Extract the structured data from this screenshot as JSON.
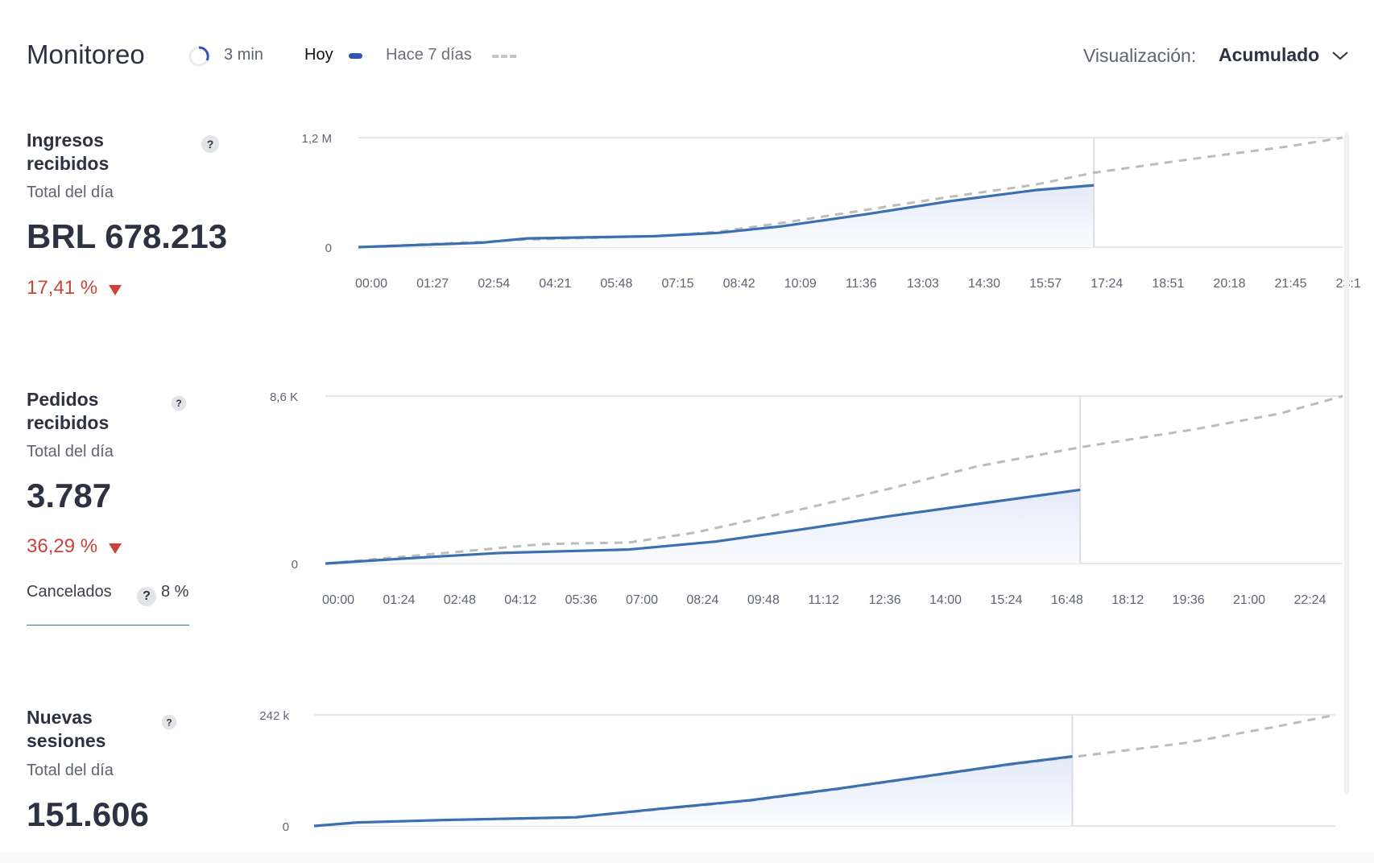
{
  "header": {
    "title": "Monitoreo",
    "refresh_interval": "3 min",
    "legend_today": "Hoy",
    "legend_previous": "Hace 7 días",
    "view_label": "Visualización:",
    "view_value": "Acumulado",
    "colors": {
      "today": "#3b6fb0",
      "previous": "#b8b8b8",
      "negative": "#c9443a"
    }
  },
  "metrics": [
    {
      "title": "Ingresos recibidos",
      "help": "?",
      "subtitle": "Total del día",
      "value": "BRL 678.213",
      "delta": "17,41 %",
      "delta_direction": "down"
    },
    {
      "title": "Pedidos recibidos",
      "help": "?",
      "subtitle": "Total del día",
      "value": "3.787",
      "delta": "36,29 %",
      "delta_direction": "down",
      "cancel_label": "Cancelados",
      "cancel_help": "?",
      "cancel_value": "8 %"
    },
    {
      "title": "Nuevas sesiones",
      "help": "?",
      "subtitle": "Total del día",
      "value": "151.606"
    }
  ],
  "chart_data": [
    {
      "type": "line",
      "ylim": [
        0,
        1200000
      ],
      "y_tick_labels": [
        "0",
        "1,2 M"
      ],
      "xlim": [
        "00:00",
        "23:17"
      ],
      "x_tick_labels": [
        "00:00",
        "01:27",
        "02:54",
        "04:21",
        "05:48",
        "07:15",
        "08:42",
        "10:09",
        "11:36",
        "13:03",
        "14:30",
        "15:57",
        "17:24",
        "18:51",
        "20:18",
        "21:45",
        "23:1"
      ],
      "current_time": "17:24",
      "series": [
        {
          "name": "Hoy",
          "style": "solid-filled",
          "x": [
            "00:00",
            "02:54",
            "04:00",
            "07:00",
            "08:30",
            "10:00",
            "12:00",
            "14:00",
            "16:00",
            "17:24"
          ],
          "values": [
            0,
            48000,
            96000,
            120000,
            156000,
            228000,
            360000,
            504000,
            624000,
            678213
          ]
        },
        {
          "name": "Hace 7 días",
          "style": "dashed",
          "x": [
            "00:00",
            "03:00",
            "04:00",
            "07:00",
            "08:30",
            "10:00",
            "12:00",
            "14:00",
            "16:00",
            "17:24",
            "20:00",
            "22:00",
            "23:17"
          ],
          "values": [
            0,
            60000,
            84000,
            120000,
            168000,
            264000,
            408000,
            552000,
            684000,
            816000,
            984000,
            1104000,
            1200000
          ]
        }
      ]
    },
    {
      "type": "line",
      "ylim": [
        0,
        8600
      ],
      "y_tick_labels": [
        "0",
        "8,6 K"
      ],
      "xlim": [
        "00:00",
        "23:27"
      ],
      "x_tick_labels": [
        "00:00",
        "01:24",
        "02:48",
        "04:12",
        "05:36",
        "07:00",
        "08:24",
        "09:48",
        "11:12",
        "12:36",
        "14:00",
        "15:24",
        "16:48",
        "18:12",
        "19:36",
        "21:00",
        "22:24"
      ],
      "current_time": "17:24",
      "series": [
        {
          "name": "Hoy",
          "style": "solid-filled",
          "x": [
            "00:00",
            "02:30",
            "04:00",
            "07:00",
            "09:00",
            "11:00",
            "13:00",
            "15:00",
            "17:24"
          ],
          "values": [
            0,
            350,
            540,
            720,
            1130,
            1760,
            2430,
            3050,
            3787
          ]
        },
        {
          "name": "Hace 7 días",
          "style": "dashed",
          "x": [
            "00:00",
            "03:00",
            "05:00",
            "07:00",
            "08:30",
            "11:00",
            "13:00",
            "15:00",
            "17:24",
            "20:00",
            "22:00",
            "23:27"
          ],
          "values": [
            0,
            590,
            1000,
            1080,
            1580,
            2800,
            3840,
            4980,
            5970,
            6880,
            7700,
            8600
          ]
        }
      ]
    },
    {
      "type": "line",
      "ylim": [
        0,
        242000
      ],
      "y_tick_labels": [
        "0",
        "242 k"
      ],
      "xlim": [
        "00:00",
        "23:26"
      ],
      "x_tick_labels": [],
      "current_time": "17:24",
      "series": [
        {
          "name": "Hoy",
          "style": "solid-filled",
          "x": [
            "00:00",
            "01:00",
            "03:00",
            "06:00",
            "08:00",
            "10:00",
            "12:00",
            "14:00",
            "16:00",
            "17:24"
          ],
          "values": [
            0,
            7700,
            13000,
            19000,
            38000,
            56000,
            81000,
            108000,
            135000,
            151606
          ]
        },
        {
          "name": "Hace 7 días",
          "style": "dashed",
          "x": [
            "00:00",
            "01:00",
            "03:00",
            "06:00",
            "08:00",
            "10:00",
            "12:00",
            "14:00",
            "16:00",
            "17:24",
            "20:00",
            "22:00",
            "23:26"
          ],
          "values": [
            0,
            7500,
            12500,
            18500,
            37000,
            55000,
            80000,
            107000,
            134000,
            150000,
            181000,
            215000,
            242000
          ]
        }
      ]
    }
  ]
}
